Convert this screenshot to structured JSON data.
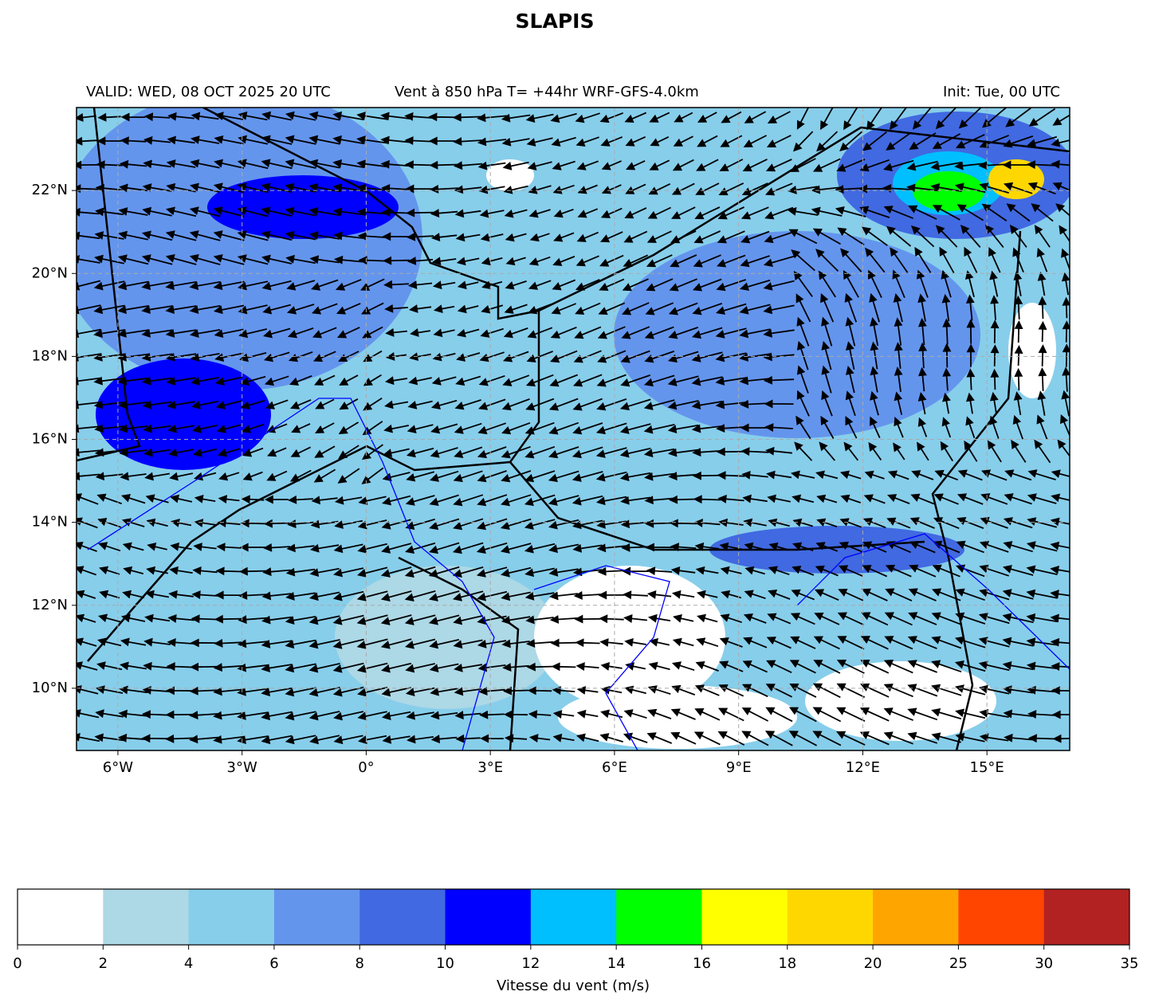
{
  "title": "SLAPIS",
  "map": {
    "valid": "VALID: WED, 08 OCT 2025 20 UTC",
    "field": "Vent à 850 hPa T= +44hr  WRF-GFS-4.0km",
    "init": "Init: Tue, 00 UTC",
    "xlim": [
      -7,
      17
    ],
    "ylim": [
      8.5,
      24
    ],
    "xticks": [
      {
        "value": -6,
        "label": "6°W"
      },
      {
        "value": -3,
        "label": "3°W"
      },
      {
        "value": 0,
        "label": "0°"
      },
      {
        "value": 3,
        "label": "3°E"
      },
      {
        "value": 6,
        "label": "6°E"
      },
      {
        "value": 9,
        "label": "9°E"
      },
      {
        "value": 12,
        "label": "12°E"
      },
      {
        "value": 15,
        "label": "15°E"
      }
    ],
    "yticks": [
      {
        "value": 10,
        "label": "10°N"
      },
      {
        "value": 12,
        "label": "12°N"
      },
      {
        "value": 14,
        "label": "14°N"
      },
      {
        "value": 16,
        "label": "16°N"
      },
      {
        "value": 18,
        "label": "18°N"
      },
      {
        "value": 20,
        "label": "20°N"
      },
      {
        "value": 22,
        "label": "22°N"
      }
    ],
    "grid": true
  },
  "colorbar": {
    "label": "Vitesse du vent (m/s)",
    "ticks": [
      0,
      2,
      4,
      6,
      8,
      10,
      12,
      14,
      16,
      18,
      20,
      25,
      30,
      35
    ],
    "colors": [
      "#ffffff",
      "#add8e6",
      "#87ceeb",
      "#6495ed",
      "#4169e1",
      "#0000ff",
      "#00bfff",
      "#00ff00",
      "#ffff00",
      "#ffd700",
      "#ffa500",
      "#ff4500",
      "#b22222"
    ]
  }
}
